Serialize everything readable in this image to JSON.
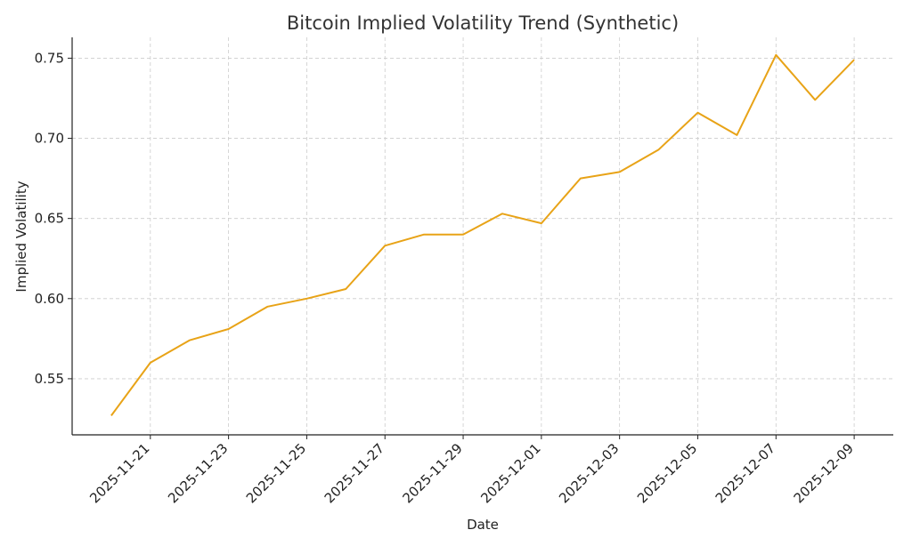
{
  "chart_data": {
    "type": "line",
    "title": "Bitcoin Implied Volatility Trend (Synthetic)",
    "xlabel": "Date",
    "ylabel": "Implied Volatility",
    "x_tick_labels": [
      "2025-11-21",
      "2025-11-23",
      "2025-11-25",
      "2025-11-27",
      "2025-11-29",
      "2025-12-01",
      "2025-12-03",
      "2025-12-05",
      "2025-12-07",
      "2025-12-09"
    ],
    "y_tick_labels": [
      "0.55",
      "0.60",
      "0.65",
      "0.70",
      "0.75"
    ],
    "y_ticks": [
      0.55,
      0.6,
      0.65,
      0.7,
      0.75
    ],
    "xlim": [
      "2025-11-19",
      "2025-12-10"
    ],
    "ylim": [
      0.515,
      0.763
    ],
    "grid": true,
    "line_color": "#e8a317",
    "series": [
      {
        "x": [
          "2025-11-20",
          "2025-11-21",
          "2025-11-22",
          "2025-11-23",
          "2025-11-24",
          "2025-11-25",
          "2025-11-26",
          "2025-11-27",
          "2025-11-28",
          "2025-11-29",
          "2025-11-30",
          "2025-12-01",
          "2025-12-02",
          "2025-12-03",
          "2025-12-04",
          "2025-12-05",
          "2025-12-06",
          "2025-12-07",
          "2025-12-08",
          "2025-12-09"
        ],
        "values": [
          0.527,
          0.56,
          0.574,
          0.581,
          0.595,
          0.6,
          0.606,
          0.633,
          0.64,
          0.64,
          0.653,
          0.647,
          0.675,
          0.679,
          0.693,
          0.716,
          0.702,
          0.752,
          0.724,
          0.749
        ]
      }
    ]
  }
}
